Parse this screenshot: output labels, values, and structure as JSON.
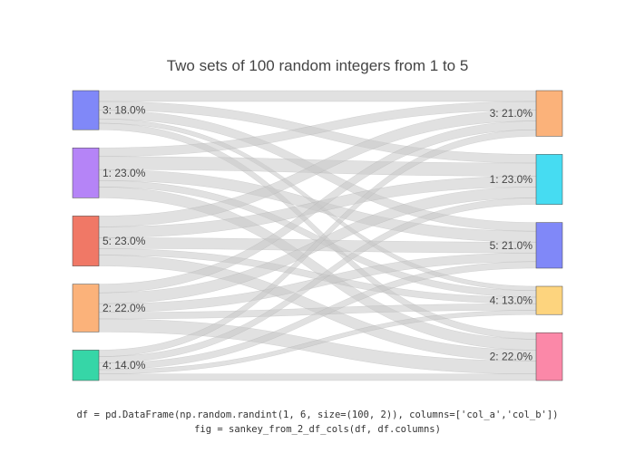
{
  "chart_data": {
    "type": "sankey",
    "title": "Two sets of 100 random integers from 1 to 5",
    "source_nodes": [
      {
        "label": "3: 18.0%",
        "value": 18,
        "color": "#8088F8"
      },
      {
        "label": "1: 23.0%",
        "value": 23,
        "color": "#B584F7"
      },
      {
        "label": "5: 23.0%",
        "value": 23,
        "color": "#F07866"
      },
      {
        "label": "2: 22.0%",
        "value": 22,
        "color": "#FBB27A"
      },
      {
        "label": "4: 14.0%",
        "value": 14,
        "color": "#36D6A7"
      }
    ],
    "target_nodes": [
      {
        "label": "3: 21.0%",
        "value": 21,
        "color": "#FBB27A"
      },
      {
        "label": "1: 23.0%",
        "value": 23,
        "color": "#46DCF2"
      },
      {
        "label": "5: 21.0%",
        "value": 21,
        "color": "#8088F8"
      },
      {
        "label": "4: 13.0%",
        "value": 13,
        "color": "#FDD47E"
      },
      {
        "label": "2: 22.0%",
        "value": 22,
        "color": "#FB88A8"
      }
    ],
    "links": [
      {
        "source": 0,
        "target": 0,
        "value": 5
      },
      {
        "source": 0,
        "target": 1,
        "value": 4
      },
      {
        "source": 0,
        "target": 2,
        "value": 4
      },
      {
        "source": 0,
        "target": 3,
        "value": 2
      },
      {
        "source": 0,
        "target": 4,
        "value": 3
      },
      {
        "source": 1,
        "target": 0,
        "value": 4
      },
      {
        "source": 1,
        "target": 1,
        "value": 6
      },
      {
        "source": 1,
        "target": 2,
        "value": 5
      },
      {
        "source": 1,
        "target": 3,
        "value": 3
      },
      {
        "source": 1,
        "target": 4,
        "value": 5
      },
      {
        "source": 2,
        "target": 0,
        "value": 5
      },
      {
        "source": 2,
        "target": 1,
        "value": 5
      },
      {
        "source": 2,
        "target": 2,
        "value": 5
      },
      {
        "source": 2,
        "target": 3,
        "value": 3
      },
      {
        "source": 2,
        "target": 4,
        "value": 5
      },
      {
        "source": 3,
        "target": 0,
        "value": 4
      },
      {
        "source": 3,
        "target": 1,
        "value": 5
      },
      {
        "source": 3,
        "target": 2,
        "value": 4
      },
      {
        "source": 3,
        "target": 3,
        "value": 3
      },
      {
        "source": 3,
        "target": 4,
        "value": 6
      },
      {
        "source": 4,
        "target": 0,
        "value": 3
      },
      {
        "source": 4,
        "target": 1,
        "value": 3
      },
      {
        "source": 4,
        "target": 2,
        "value": 3
      },
      {
        "source": 4,
        "target": 3,
        "value": 2
      },
      {
        "source": 4,
        "target": 4,
        "value": 3
      }
    ],
    "link_color": "#c8c8c8"
  },
  "caption": {
    "line1": "df = pd.DataFrame(np.random.randint(1, 6, size=(100, 2)), columns=['col_a','col_b'])",
    "line2": "fig = sankey_from_2_df_cols(df, df.columns)"
  }
}
